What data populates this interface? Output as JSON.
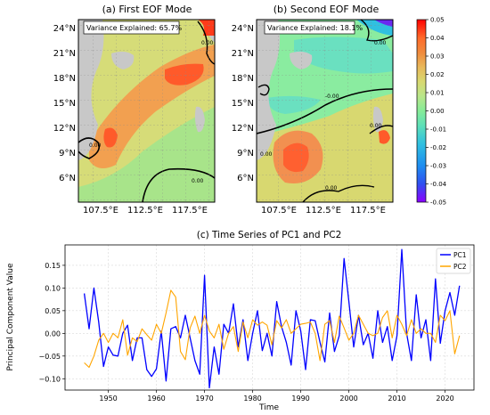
{
  "map_a": {
    "title": "(a) First EOF Mode",
    "annotation": "Variance Explained: 65.7%",
    "lat_ticks": [
      "24°N",
      "21°N",
      "18°N",
      "15°N",
      "12°N",
      "9°N",
      "6°N"
    ],
    "lon_ticks": [
      "107.5°E",
      "112.5°E",
      "117.5°E"
    ],
    "contour_labels": [
      "0.00",
      "0.00",
      "0.00"
    ]
  },
  "map_b": {
    "title": "(b) Second EOF Mode",
    "annotation": "Variance Explained: 18.1%",
    "lat_ticks": [
      "24°N",
      "21°N",
      "18°N",
      "15°N",
      "12°N",
      "9°N",
      "6°N"
    ],
    "lon_ticks": [
      "107.5°E",
      "112.5°E",
      "117.5°E"
    ],
    "contour_labels": [
      "0.00",
      "-0.00",
      "0.00",
      "0.00",
      "0.00"
    ]
  },
  "colorbar": {
    "ticks": [
      "0.05",
      "0.04",
      "0.03",
      "0.02",
      "0.01",
      "0.00",
      "-0.01",
      "-0.02",
      "-0.03",
      "-0.04",
      "-0.05"
    ],
    "colors": [
      "#ff0000",
      "#ff6a2a",
      "#f08a3c",
      "#e8b85a",
      "#d8d870",
      "#b9e68a",
      "#86ec98",
      "#5ee0b8",
      "#30c0e0",
      "#1e8ef0",
      "#2a5ef0",
      "#6a2af0",
      "#8b00ff"
    ]
  },
  "chart_data": {
    "type": "line",
    "title": "(c) Time Series of PC1 and PC2",
    "xlabel": "Time",
    "ylabel": "Principal Component Value",
    "xlim": [
      1941,
      2026
    ],
    "ylim": [
      -0.125,
      0.195
    ],
    "x_ticks": [
      1950,
      1960,
      1970,
      1980,
      1990,
      2000,
      2010,
      2020
    ],
    "y_ticks": [
      -0.1,
      -0.05,
      0.0,
      0.05,
      0.1,
      0.15
    ],
    "y_tick_labels": [
      "−0.10",
      "−0.05",
      "0.00",
      "0.05",
      "0.10",
      "0.15"
    ],
    "grid": true,
    "legend_position": "top-right",
    "x": [
      1945,
      1946,
      1947,
      1948,
      1949,
      1950,
      1951,
      1952,
      1953,
      1954,
      1955,
      1956,
      1957,
      1958,
      1959,
      1960,
      1961,
      1962,
      1963,
      1964,
      1965,
      1966,
      1967,
      1968,
      1969,
      1970,
      1971,
      1972,
      1973,
      1974,
      1975,
      1976,
      1977,
      1978,
      1979,
      1980,
      1981,
      1982,
      1983,
      1984,
      1985,
      1986,
      1987,
      1988,
      1989,
      1990,
      1991,
      1992,
      1993,
      1994,
      1995,
      1996,
      1997,
      1998,
      1999,
      2000,
      2001,
      2002,
      2003,
      2004,
      2005,
      2006,
      2007,
      2008,
      2009,
      2010,
      2011,
      2012,
      2013,
      2014,
      2015,
      2016,
      2017,
      2018,
      2019,
      2020,
      2021,
      2022,
      2023
    ],
    "series": [
      {
        "name": "PC1",
        "color": "#0000ff",
        "values": [
          0.088,
          0.01,
          0.1,
          0.025,
          -0.073,
          -0.03,
          -0.048,
          -0.05,
          0.0,
          0.018,
          -0.06,
          -0.01,
          -0.01,
          -0.08,
          -0.095,
          -0.078,
          0.005,
          -0.105,
          0.01,
          0.015,
          -0.01,
          0.04,
          -0.01,
          -0.06,
          -0.09,
          0.128,
          -0.12,
          -0.03,
          -0.09,
          0.02,
          0.0,
          0.065,
          -0.03,
          0.03,
          -0.06,
          0.0,
          0.05,
          -0.038,
          0.0,
          -0.05,
          0.07,
          0.015,
          -0.02,
          -0.07,
          0.05,
          0.005,
          -0.08,
          0.03,
          0.028,
          -0.02,
          -0.063,
          0.045,
          -0.04,
          -0.005,
          0.165,
          0.07,
          -0.03,
          0.04,
          -0.025,
          0.0,
          -0.055,
          0.05,
          -0.02,
          0.015,
          -0.06,
          -0.005,
          0.185,
          0.0,
          -0.06,
          0.085,
          -0.01,
          0.03,
          -0.06,
          0.12,
          -0.022,
          0.05,
          0.09,
          0.04,
          0.105
        ]
      },
      {
        "name": "PC2",
        "color": "#ffa500",
        "values": [
          -0.065,
          -0.075,
          -0.05,
          -0.015,
          0.0,
          -0.02,
          0.0,
          -0.01,
          0.03,
          -0.048,
          -0.01,
          -0.018,
          0.01,
          -0.003,
          -0.015,
          0.02,
          0.0,
          0.045,
          0.095,
          0.08,
          -0.04,
          -0.058,
          0.012,
          0.038,
          0.0,
          0.04,
          0.005,
          -0.01,
          0.02,
          -0.035,
          0.0,
          0.015,
          -0.04,
          0.025,
          -0.01,
          0.03,
          0.018,
          0.025,
          0.018,
          -0.025,
          0.028,
          0.012,
          0.03,
          0.0,
          0.01,
          0.02,
          0.022,
          0.025,
          0.0,
          -0.06,
          0.02,
          0.028,
          -0.02,
          0.038,
          0.012,
          -0.015,
          0.0,
          0.04,
          0.02,
          0.0,
          -0.005,
          0.0,
          0.035,
          0.05,
          -0.01,
          0.04,
          0.02,
          -0.005,
          0.03,
          0.0,
          0.01,
          0.0,
          0.0,
          -0.02,
          0.04,
          0.028,
          0.05,
          -0.045,
          -0.005
        ]
      }
    ]
  }
}
